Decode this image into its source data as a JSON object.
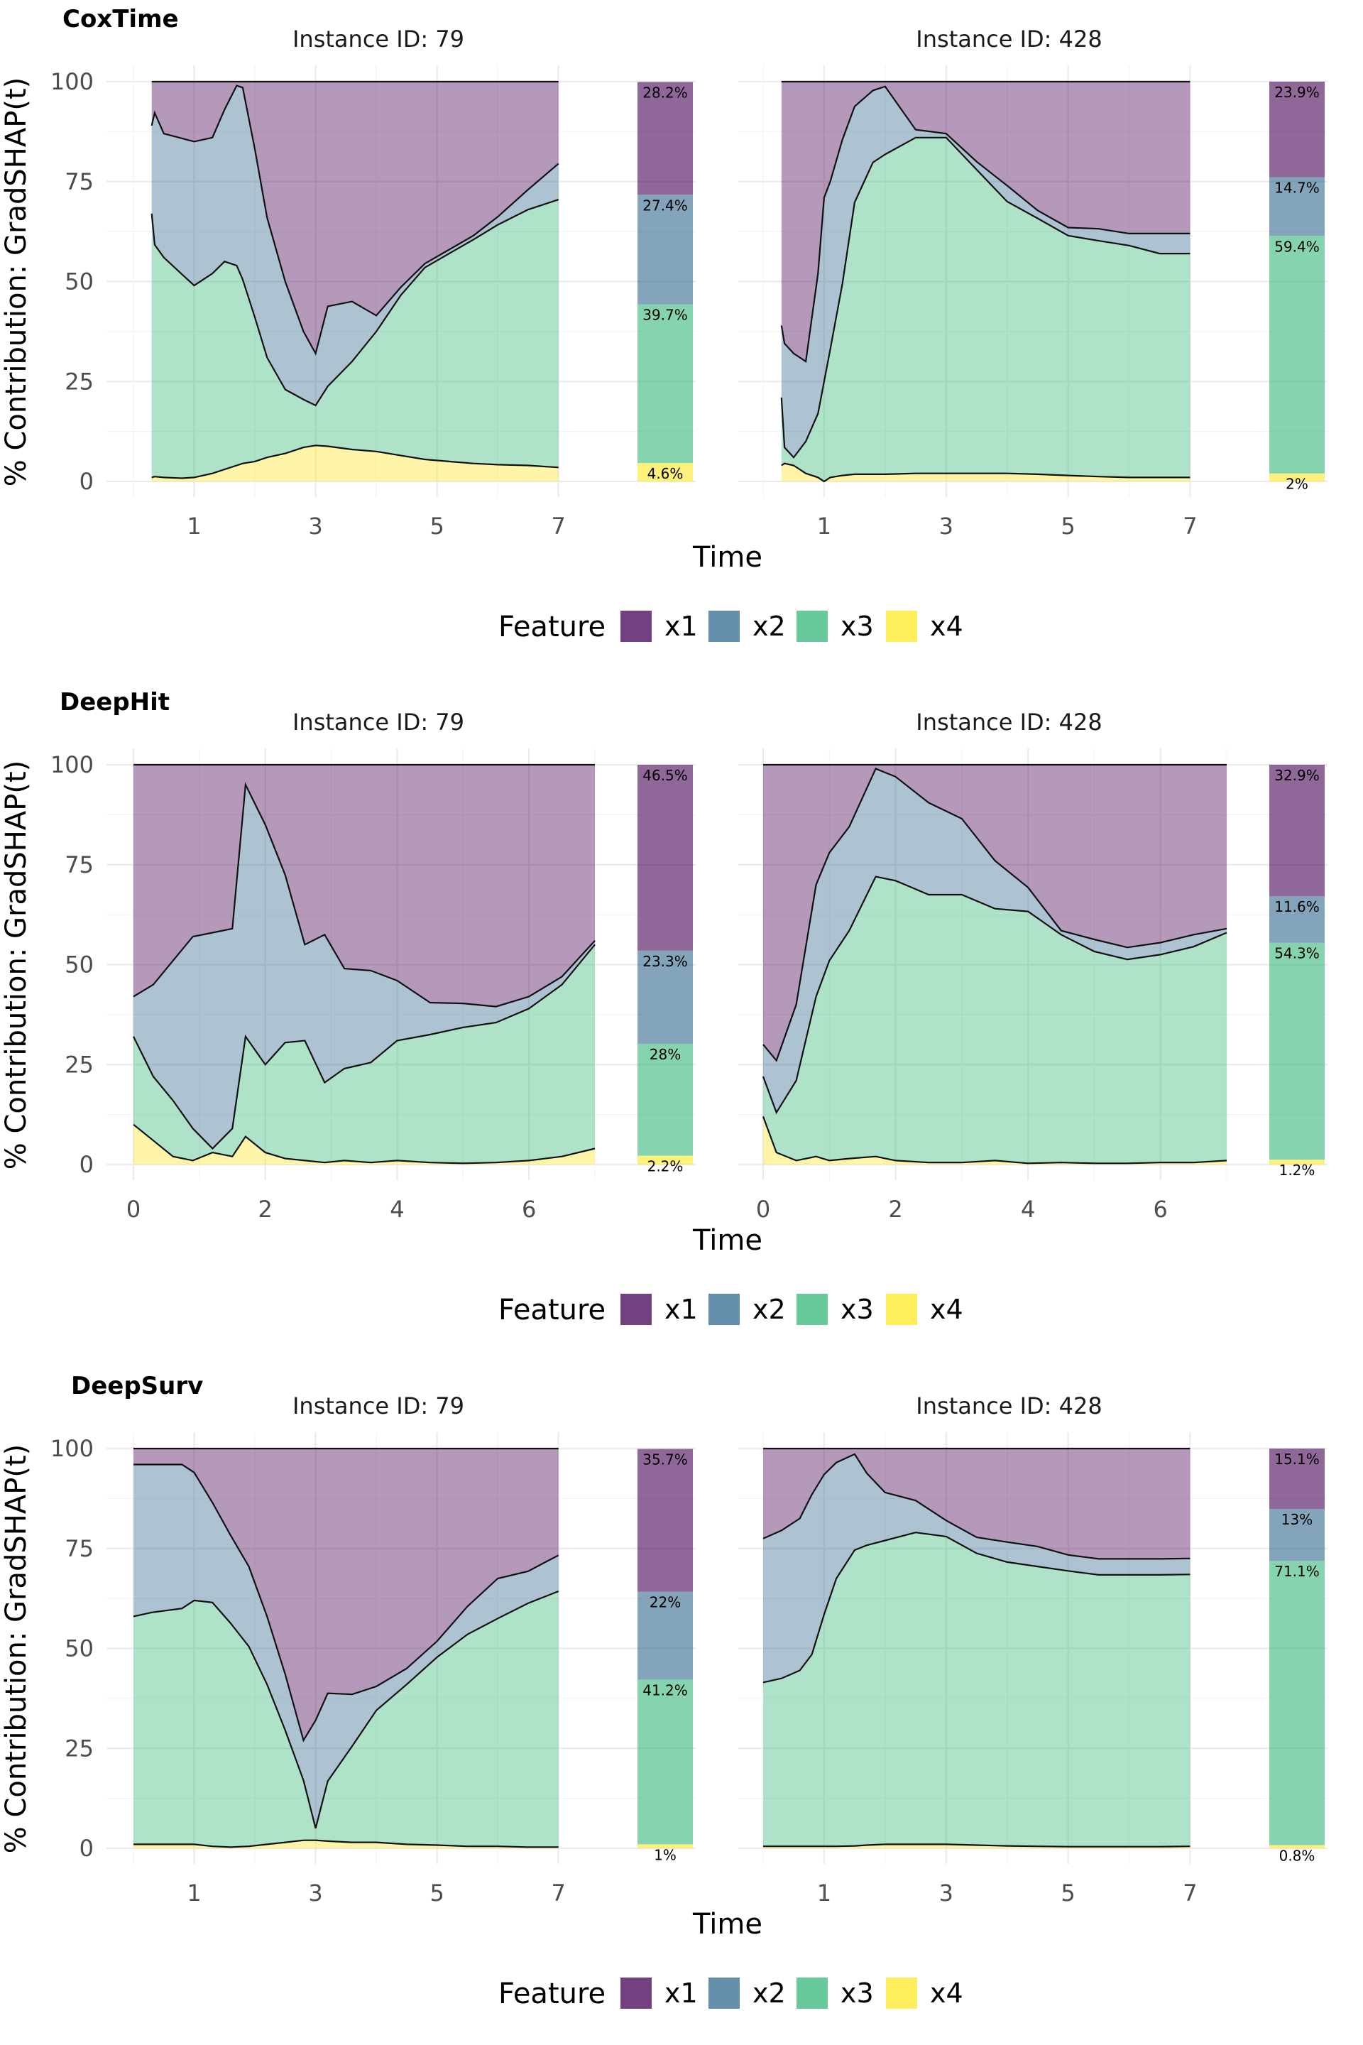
{
  "colors": {
    "x1": "#440154",
    "x2": "#31688e",
    "x3": "#35b779",
    "x4": "#fde725",
    "line": "#111111"
  },
  "y_axis_label": "% Contribution: GradSHAP(t)",
  "x_axis_label": "Time",
  "legend": {
    "title": "Feature",
    "items": [
      "x1",
      "x2",
      "x3",
      "x4"
    ]
  },
  "chart_data": [
    {
      "title": "CoxTime",
      "type": "area",
      "xlabel": "Time",
      "ylabel": "% Contribution: GradSHAP(t)",
      "ylim": [
        0,
        100
      ],
      "y_ticks": [
        0,
        25,
        50,
        75,
        100
      ],
      "xlim": [
        0,
        7.6
      ],
      "x_ticks": [
        1,
        3,
        5,
        7
      ],
      "x_tick_labels": [
        "1",
        "3",
        "5",
        "7"
      ],
      "x_minor": [
        0,
        2,
        4,
        6
      ],
      "instances": [
        {
          "facet_label": "Instance ID: 79",
          "x": [
            0.3,
            0.35,
            0.5,
            0.8,
            1.0,
            1.3,
            1.5,
            1.7,
            1.8,
            2.0,
            2.2,
            2.5,
            2.8,
            3.0,
            3.2,
            3.6,
            4.0,
            4.4,
            4.8,
            5.2,
            5.6,
            6.0,
            6.5,
            7.0
          ],
          "x4": [
            1,
            1.2,
            1,
            0.8,
            1,
            2,
            3,
            4,
            4.5,
            5,
            6,
            7,
            8.5,
            9,
            8.8,
            8,
            7.5,
            6.5,
            5.5,
            5,
            4.5,
            4.2,
            4,
            3.5
          ],
          "x3": [
            66,
            58,
            55,
            51,
            48,
            50,
            52,
            50,
            46,
            36,
            25,
            16,
            12,
            10,
            15,
            22,
            30,
            40,
            48,
            52,
            56,
            60,
            64,
            67
          ],
          "x2": [
            22,
            33,
            31,
            34,
            36,
            34,
            38,
            45,
            48,
            42,
            35,
            27,
            17,
            13,
            20,
            15,
            4,
            2,
            1,
            1,
            1,
            2,
            5,
            9
          ],
          "bar": [
            28.2,
            27.4,
            39.7,
            4.6
          ]
        },
        {
          "facet_label": "Instance ID: 428",
          "x": [
            0.3,
            0.35,
            0.5,
            0.7,
            0.9,
            1.0,
            1.1,
            1.3,
            1.5,
            1.8,
            2.0,
            2.5,
            3.0,
            3.5,
            4.0,
            4.5,
            5.0,
            5.5,
            6.0,
            6.5,
            7.0
          ],
          "x4": [
            4,
            4.5,
            4,
            2,
            1,
            0,
            1,
            1.5,
            1.8,
            1.8,
            1.8,
            2,
            2,
            2,
            2,
            1.8,
            1.5,
            1.2,
            1,
            1,
            1
          ],
          "x3": [
            17,
            4,
            2,
            8,
            16,
            25,
            32,
            48,
            68,
            78,
            80,
            84,
            84,
            76,
            68,
            64,
            60,
            59,
            58,
            56,
            56
          ],
          "x2": [
            18,
            26,
            26,
            20,
            35,
            46,
            42,
            36,
            24,
            18,
            17,
            2,
            1,
            2,
            4,
            2,
            2,
            3,
            3,
            5,
            5
          ],
          "bar": [
            23.9,
            14.7,
            59.4,
            2.0
          ]
        }
      ]
    },
    {
      "title": "DeepHit",
      "type": "area",
      "xlabel": "Time",
      "ylabel": "% Contribution: GradSHAP(t)",
      "ylim": [
        0,
        100
      ],
      "y_ticks": [
        0,
        25,
        50,
        75,
        100
      ],
      "xlim": [
        0,
        7.0
      ],
      "x_ticks": [
        0,
        2,
        4,
        6
      ],
      "x_tick_labels": [
        "0",
        "2",
        "4",
        "6"
      ],
      "x_minor": [
        1,
        3,
        5,
        7
      ],
      "instances": [
        {
          "facet_label": "Instance ID: 79",
          "x": [
            0,
            0.3,
            0.6,
            0.9,
            1.2,
            1.5,
            1.7,
            2.0,
            2.3,
            2.6,
            2.9,
            3.2,
            3.6,
            4.0,
            4.5,
            5.0,
            5.5,
            6.0,
            6.5,
            7.0
          ],
          "x4": [
            10,
            6,
            2,
            1,
            3,
            2,
            7,
            3,
            1.5,
            1,
            0.5,
            1,
            0.5,
            1,
            0.5,
            0.3,
            0.5,
            1,
            2,
            4
          ],
          "x3": [
            22,
            16,
            14,
            8,
            1,
            7,
            25,
            22,
            29,
            30,
            20,
            23,
            25,
            30,
            32,
            34,
            35,
            38,
            43,
            51
          ],
          "x2": [
            10,
            23,
            35,
            48,
            54,
            50,
            63,
            60,
            42,
            24,
            37,
            25,
            23,
            15,
            8,
            6,
            4,
            3,
            2,
            1
          ],
          "bar": [
            46.5,
            23.3,
            28.0,
            2.2
          ]
        },
        {
          "facet_label": "Instance ID: 428",
          "x": [
            0,
            0.2,
            0.5,
            0.8,
            1.0,
            1.3,
            1.7,
            2.0,
            2.5,
            3.0,
            3.5,
            4.0,
            4.5,
            5.0,
            5.5,
            6.0,
            6.5,
            7.0
          ],
          "x4": [
            12,
            3,
            1,
            2,
            1,
            1.5,
            2,
            1,
            0.5,
            0.5,
            1,
            0.3,
            0.5,
            0.3,
            0.3,
            0.5,
            0.5,
            1
          ],
          "x3": [
            10,
            10,
            20,
            40,
            50,
            57,
            70,
            70,
            67,
            67,
            63,
            63,
            57,
            53,
            51,
            52,
            54,
            57
          ],
          "x2": [
            8,
            13,
            19,
            28,
            27,
            26,
            27,
            26,
            23,
            19,
            12,
            6,
            1,
            3,
            3,
            3,
            3,
            1
          ],
          "bar": [
            32.9,
            11.6,
            54.3,
            1.2
          ]
        }
      ]
    },
    {
      "title": "DeepSurv",
      "type": "area",
      "xlabel": "Time",
      "ylabel": "% Contribution: GradSHAP(t)",
      "ylim": [
        0,
        100
      ],
      "y_ticks": [
        0,
        25,
        50,
        75,
        100
      ],
      "xlim": [
        0,
        7.6
      ],
      "x_ticks": [
        1,
        3,
        5,
        7
      ],
      "x_tick_labels": [
        "1",
        "3",
        "5",
        "7"
      ],
      "x_minor": [
        0,
        2,
        4,
        6
      ],
      "instances": [
        {
          "facet_label": "Instance ID: 79",
          "x": [
            0,
            0.3,
            0.8,
            1.0,
            1.3,
            1.6,
            1.9,
            2.2,
            2.5,
            2.8,
            3.0,
            3.2,
            3.6,
            4.0,
            4.5,
            5.0,
            5.5,
            6.0,
            6.5,
            7.0
          ],
          "x4": [
            1,
            1,
            1,
            1,
            0.5,
            0.3,
            0.5,
            1,
            1.5,
            2,
            2,
            1.8,
            1.5,
            1.5,
            1,
            0.8,
            0.5,
            0.5,
            0.3,
            0.3
          ],
          "x3": [
            57,
            58,
            59,
            61,
            61,
            56,
            50,
            40,
            28,
            15,
            3,
            15,
            24,
            33,
            40,
            47,
            53,
            57,
            61,
            64
          ],
          "x2": [
            38,
            37,
            36,
            32,
            25,
            22,
            20,
            17,
            14,
            10,
            27,
            22,
            13,
            6,
            4,
            4,
            7,
            10,
            8,
            9
          ],
          "bar": [
            35.7,
            22.0,
            41.2,
            1.0
          ]
        },
        {
          "facet_label": "Instance ID: 428",
          "x": [
            0,
            0.3,
            0.6,
            0.8,
            1.0,
            1.2,
            1.5,
            1.7,
            2.0,
            2.5,
            3.0,
            3.5,
            4.0,
            4.5,
            5.0,
            5.5,
            6.0,
            6.5,
            7.0
          ],
          "x4": [
            0.5,
            0.5,
            0.5,
            0.5,
            0.5,
            0.5,
            0.6,
            0.8,
            1,
            1,
            1,
            0.8,
            0.6,
            0.5,
            0.4,
            0.4,
            0.4,
            0.4,
            0.5
          ],
          "x3": [
            41,
            42,
            44,
            48,
            58,
            67,
            74,
            75,
            76,
            78,
            77,
            73,
            71,
            70,
            69,
            68,
            68,
            68,
            68
          ],
          "x2": [
            36,
            37,
            38,
            40,
            35,
            29,
            24,
            18,
            12,
            8,
            4,
            4,
            5,
            5,
            4,
            4,
            4,
            4,
            4
          ],
          "bar": [
            15.1,
            13.0,
            71.1,
            0.8
          ]
        }
      ]
    }
  ]
}
